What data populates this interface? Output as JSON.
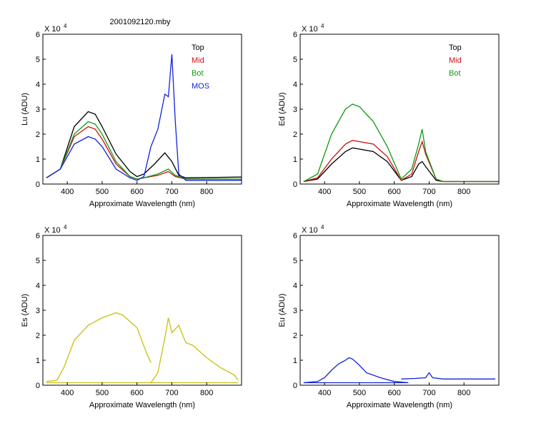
{
  "title": "2001092120.mby",
  "colors": {
    "top": "#000000",
    "mid": "#cc1111",
    "bot": "#119911",
    "mos": "#1122dd",
    "es": "#c8c010"
  },
  "chart_data": [
    {
      "type": "line",
      "multiplier_label": "X 10",
      "multiplier_exp": "4",
      "xlabel": "Approximate Wavelength (nm)",
      "ylabel": "Lu (ADU)",
      "xlim": [
        330,
        900
      ],
      "ylim": [
        0,
        6
      ],
      "xticks": [
        "400",
        "500",
        "600",
        "700",
        "800"
      ],
      "yticks": [
        "0",
        "1",
        "2",
        "3",
        "4",
        "5",
        "6"
      ],
      "legend": [
        "Top",
        "Mid",
        "Bot",
        "MOS"
      ],
      "legend_colors": [
        "#000000",
        "#cc1111",
        "#119911",
        "#1122dd"
      ],
      "legend_position": "top-right",
      "series": [
        {
          "name": "Top",
          "color": "#000000",
          "x": [
            340,
            380,
            420,
            460,
            480,
            500,
            540,
            580,
            600,
            620,
            650,
            680,
            700,
            720,
            740,
            900
          ],
          "y": [
            0.25,
            0.6,
            2.3,
            2.9,
            2.8,
            2.3,
            1.2,
            0.5,
            0.3,
            0.4,
            0.8,
            1.25,
            0.9,
            0.35,
            0.25,
            0.28
          ]
        },
        {
          "name": "Mid",
          "color": "#cc1111",
          "x": [
            340,
            380,
            420,
            460,
            480,
            500,
            540,
            580,
            600,
            620,
            660,
            690,
            710,
            740,
            900
          ],
          "y": [
            0.25,
            0.6,
            1.9,
            2.3,
            2.2,
            1.8,
            0.8,
            0.3,
            0.2,
            0.25,
            0.35,
            0.5,
            0.3,
            0.2,
            0.2
          ]
        },
        {
          "name": "Bot",
          "color": "#119911",
          "x": [
            340,
            380,
            420,
            460,
            480,
            500,
            540,
            580,
            600,
            620,
            660,
            690,
            710,
            740,
            900
          ],
          "y": [
            0.25,
            0.6,
            2.0,
            2.5,
            2.4,
            2.0,
            0.9,
            0.3,
            0.2,
            0.25,
            0.4,
            0.6,
            0.35,
            0.2,
            0.2
          ]
        },
        {
          "name": "MOS",
          "color": "#1122dd",
          "x": [
            340,
            380,
            420,
            460,
            480,
            500,
            540,
            580,
            600,
            620,
            640,
            660,
            680,
            690,
            700,
            710,
            720,
            740,
            900
          ],
          "y": [
            0.25,
            0.6,
            1.6,
            1.9,
            1.8,
            1.5,
            0.6,
            0.25,
            0.15,
            0.3,
            1.5,
            2.2,
            3.6,
            3.5,
            5.2,
            2.5,
            0.4,
            0.15,
            0.15
          ]
        }
      ]
    },
    {
      "type": "line",
      "multiplier_label": "X 10",
      "multiplier_exp": "4",
      "xlabel": "Approximate Wavelength (nm)",
      "ylabel": "Ed (ADU)",
      "xlim": [
        330,
        900
      ],
      "ylim": [
        0,
        6
      ],
      "xticks": [
        "400",
        "500",
        "600",
        "700",
        "800"
      ],
      "yticks": [
        "0",
        "1",
        "2",
        "3",
        "4",
        "5",
        "6"
      ],
      "legend": [
        "Top",
        "Mid",
        "Bot"
      ],
      "legend_colors": [
        "#000000",
        "#cc1111",
        "#119911"
      ],
      "legend_position": "top-right",
      "series": [
        {
          "name": "Top",
          "color": "#000000",
          "x": [
            340,
            380,
            420,
            460,
            480,
            500,
            540,
            580,
            620,
            650,
            670,
            680,
            690,
            720,
            740,
            900
          ],
          "y": [
            0.1,
            0.2,
            0.8,
            1.3,
            1.45,
            1.4,
            1.3,
            0.9,
            0.15,
            0.3,
            0.8,
            0.9,
            0.7,
            0.15,
            0.1,
            0.1
          ]
        },
        {
          "name": "Mid",
          "color": "#cc1111",
          "x": [
            340,
            380,
            420,
            460,
            480,
            500,
            540,
            580,
            620,
            650,
            670,
            680,
            690,
            720,
            740,
            900
          ],
          "y": [
            0.1,
            0.25,
            1.0,
            1.6,
            1.75,
            1.7,
            1.6,
            1.1,
            0.15,
            0.4,
            1.3,
            1.7,
            1.2,
            0.2,
            0.1,
            0.1
          ]
        },
        {
          "name": "Bot",
          "color": "#119911",
          "x": [
            340,
            380,
            420,
            460,
            480,
            500,
            540,
            580,
            620,
            650,
            670,
            680,
            690,
            720,
            740,
            900
          ],
          "y": [
            0.1,
            0.4,
            2.0,
            3.0,
            3.2,
            3.1,
            2.5,
            1.5,
            0.2,
            0.6,
            1.6,
            2.2,
            1.3,
            0.2,
            0.1,
            0.1
          ]
        }
      ]
    },
    {
      "type": "line",
      "multiplier_label": "X 10",
      "multiplier_exp": "4",
      "xlabel": "Approximate Wavelength (nm)",
      "ylabel": "Es (ADU)",
      "xlim": [
        330,
        900
      ],
      "ylim": [
        0,
        6
      ],
      "xticks": [
        "400",
        "500",
        "600",
        "700",
        "800"
      ],
      "yticks": [
        "0",
        "1",
        "2",
        "3",
        "4",
        "5",
        "6"
      ],
      "series": [
        {
          "name": "",
          "color": "#c8c010",
          "x": [
            340,
            370,
            390,
            420,
            460,
            500,
            540,
            560,
            600,
            630,
            640
          ],
          "y": [
            0.15,
            0.2,
            0.7,
            1.8,
            2.4,
            2.7,
            2.9,
            2.8,
            2.3,
            1.2,
            0.9
          ]
        },
        {
          "name": "",
          "color": "#c8c010",
          "x": [
            640,
            660,
            680,
            690,
            700,
            720,
            740,
            760,
            800,
            840,
            880,
            890
          ],
          "y": [
            0.1,
            0.5,
            1.9,
            2.7,
            2.1,
            2.4,
            1.7,
            1.6,
            1.1,
            0.7,
            0.4,
            0.2
          ]
        },
        {
          "name": "",
          "color": "#c8c010",
          "x": [
            340,
            890
          ],
          "y": [
            0.1,
            0.1
          ]
        }
      ]
    },
    {
      "type": "line",
      "multiplier_label": "X 10",
      "multiplier_exp": "4",
      "xlabel": "Approximate Wavelength (nm)",
      "ylabel": "Eu (ADU)",
      "xlim": [
        330,
        900
      ],
      "ylim": [
        0,
        6
      ],
      "xticks": [
        "400",
        "500",
        "600",
        "700",
        "800"
      ],
      "yticks": [
        "0",
        "1",
        "2",
        "3",
        "4",
        "5",
        "6"
      ],
      "series": [
        {
          "name": "",
          "color": "#1122dd",
          "x": [
            340,
            380,
            400,
            420,
            440,
            460,
            470,
            480,
            500,
            520,
            560,
            600,
            640
          ],
          "y": [
            0.1,
            0.15,
            0.3,
            0.6,
            0.85,
            1.0,
            1.1,
            1.05,
            0.8,
            0.5,
            0.3,
            0.15,
            0.1
          ]
        },
        {
          "name": "",
          "color": "#1122dd",
          "x": [
            620,
            660,
            690,
            700,
            710,
            740,
            800,
            890
          ],
          "y": [
            0.25,
            0.27,
            0.3,
            0.5,
            0.3,
            0.25,
            0.25,
            0.25
          ]
        },
        {
          "name": "",
          "color": "#1122dd",
          "x": [
            340,
            640
          ],
          "y": [
            0.1,
            0.1
          ]
        }
      ]
    }
  ]
}
